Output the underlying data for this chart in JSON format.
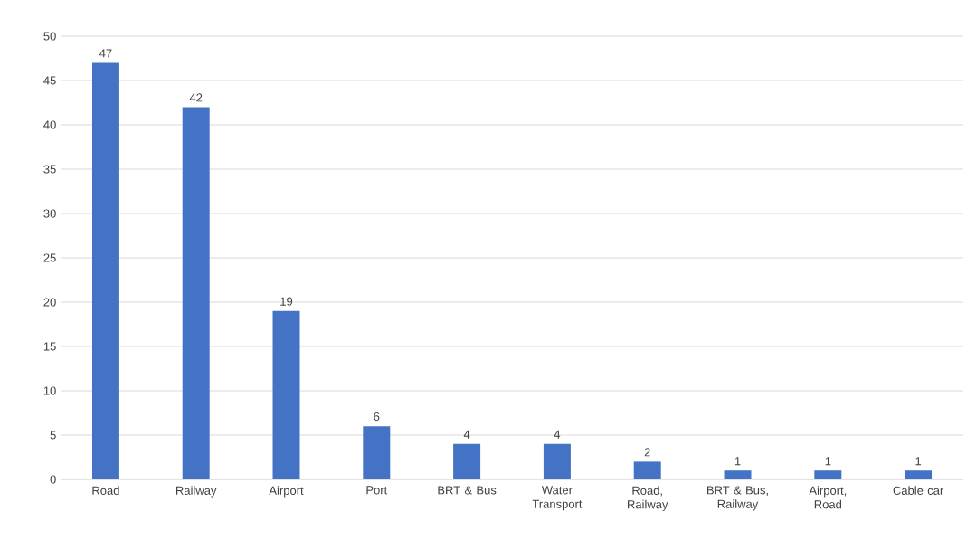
{
  "chart_data": {
    "type": "bar",
    "categories": [
      "Road",
      "Railway",
      "Airport",
      "Port",
      "BRT & Bus",
      "Water Transport",
      "Road, Railway",
      "BRT & Bus, Railway",
      "Airport, Road",
      "Cable car"
    ],
    "values": [
      47,
      42,
      19,
      6,
      4,
      4,
      2,
      1,
      1,
      1
    ],
    "color": "#4472c4",
    "ylim": [
      0,
      50
    ],
    "yticks": [
      0,
      5,
      10,
      15,
      20,
      25,
      30,
      35,
      40,
      45,
      50
    ],
    "grid": "y",
    "data_labels": true
  }
}
